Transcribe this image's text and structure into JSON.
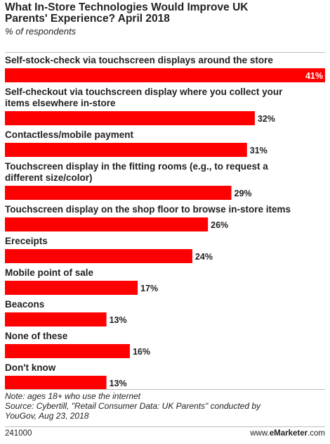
{
  "header": {
    "title_line1": "What In-Store Technologies Would Improve UK",
    "title_line2": "Parents' Experience? April 2018",
    "subtitle": "% of respondents"
  },
  "chart_data": {
    "type": "bar",
    "orientation": "horizontal",
    "title": "What In-Store Technologies Would Improve UK Parents' Experience? April 2018",
    "subtitle": "% of respondents",
    "bar_color": "#ff0000",
    "categories": [
      [
        "Self-stock-check via touchscreen displays around the store"
      ],
      [
        "Self-checkout via touchscreen display where you collect your",
        "items elsewhere in-store"
      ],
      [
        "Contactless/mobile payment"
      ],
      [
        "Touchscreen display in the fitting rooms (e.g., to request a",
        "different size/color)"
      ],
      [
        "Touchscreen display on the shop floor to browse in-store items"
      ],
      [
        "Ereceipts"
      ],
      [
        "Mobile point of sale"
      ],
      [
        "Beacons"
      ],
      [
        "None of these"
      ],
      [
        "Don't know"
      ]
    ],
    "values": [
      41,
      32,
      31,
      29,
      26,
      24,
      17,
      13,
      16,
      13
    ],
    "value_labels": [
      "41%",
      "32%",
      "31%",
      "29%",
      "26%",
      "24%",
      "17%",
      "13%",
      "16%",
      "13%"
    ],
    "xlim": [
      0,
      41
    ]
  },
  "footer": {
    "note": "Note: ages 18+ who use the internet",
    "source_line1": "Source: Cybertill, \"Retail Consumer Data: UK Parents\" conducted by",
    "source_line2": "YouGov, Aug 23, 2018"
  },
  "bottom": {
    "chart_id": "241000",
    "brand_prefix": "www.",
    "brand_name": "eMarketer",
    "brand_suffix": ".com"
  }
}
